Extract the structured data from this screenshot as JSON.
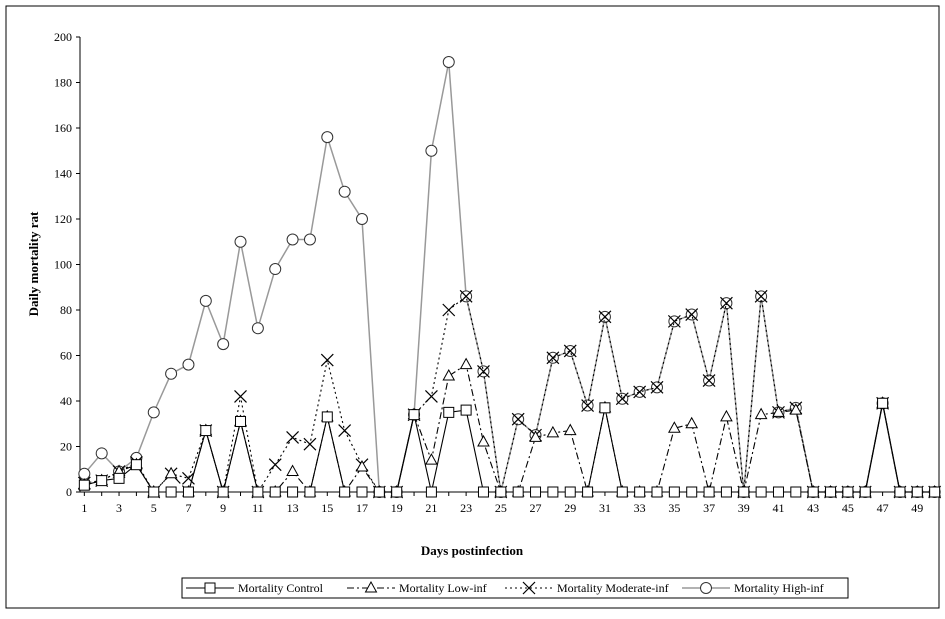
{
  "chart_data": {
    "type": "line",
    "title": "",
    "xlabel": "Days postinfection",
    "ylabel": "Daily mortality rat",
    "ylim": [
      0,
      200
    ],
    "yticks": [
      0,
      20,
      40,
      60,
      80,
      100,
      120,
      140,
      160,
      180,
      200
    ],
    "xlim": [
      1,
      50
    ],
    "xtick_labels": [
      "1",
      "3",
      "5",
      "7",
      "9",
      "11",
      "13",
      "15",
      "17",
      "19",
      "21",
      "23",
      "25",
      "27",
      "29",
      "31",
      "33",
      "35",
      "37",
      "39",
      "41",
      "43",
      "45",
      "47",
      "49"
    ],
    "grid": false,
    "legend_position": "bottom",
    "x": [
      1,
      2,
      3,
      4,
      5,
      6,
      7,
      8,
      9,
      10,
      11,
      12,
      13,
      14,
      15,
      16,
      17,
      18,
      19,
      20,
      21,
      22,
      23,
      24,
      25,
      26,
      27,
      28,
      29,
      30,
      31,
      32,
      33,
      34,
      35,
      36,
      37,
      38,
      39,
      40,
      41,
      42,
      43,
      44,
      45,
      46,
      47,
      48,
      49,
      50
    ],
    "series": [
      {
        "name": "Mortality Control",
        "marker": "square",
        "line_style": "solid",
        "color": "#000000",
        "values": [
          3,
          5,
          6,
          12,
          0,
          0,
          0,
          27,
          0,
          31,
          0,
          0,
          0,
          0,
          33,
          0,
          0,
          0,
          0,
          34,
          0,
          35,
          36,
          0,
          0,
          0,
          0,
          0,
          0,
          0,
          37,
          0,
          0,
          0,
          0,
          0,
          0,
          0,
          0,
          0,
          0,
          0,
          0,
          0,
          0,
          0,
          39,
          0,
          0,
          0
        ]
      },
      {
        "name": "Mortality Low-inf",
        "marker": "triangle",
        "line_style": "dashdot",
        "color": "#000000",
        "values": [
          3,
          5,
          9,
          12,
          0,
          8,
          0,
          27,
          0,
          31,
          0,
          0,
          9,
          0,
          33,
          0,
          11,
          0,
          0,
          34,
          14,
          51,
          56,
          22,
          0,
          0,
          24,
          26,
          27,
          0,
          37,
          0,
          0,
          0,
          28,
          30,
          0,
          33,
          0,
          34,
          35,
          36,
          0,
          0,
          0,
          0,
          39,
          0,
          0,
          0
        ]
      },
      {
        "name": "Mortality Moderate-inf",
        "marker": "x",
        "line_style": "dotted",
        "color": "#000000",
        "values": [
          4,
          5,
          9,
          13,
          0,
          8,
          6,
          27,
          0,
          42,
          0,
          12,
          24,
          21,
          58,
          27,
          12,
          0,
          0,
          34,
          42,
          80,
          86,
          53,
          0,
          32,
          25,
          59,
          62,
          38,
          77,
          41,
          44,
          46,
          75,
          78,
          49,
          83,
          0,
          86,
          35,
          37,
          0,
          0,
          0,
          0,
          39,
          0,
          0,
          0
        ]
      },
      {
        "name": "Mortality High-inf",
        "marker": "circle",
        "line_style": "solid",
        "color": "#999999",
        "values": [
          8,
          17,
          9,
          15,
          35,
          52,
          56,
          84,
          65,
          110,
          72,
          98,
          111,
          111,
          156,
          132,
          120,
          0,
          0,
          34,
          150,
          189,
          86,
          53,
          0,
          32,
          25,
          59,
          62,
          38,
          77,
          41,
          44,
          46,
          75,
          78,
          49,
          83,
          0,
          86,
          35,
          37,
          0,
          0,
          0,
          0,
          39,
          0,
          0,
          0
        ]
      }
    ]
  }
}
